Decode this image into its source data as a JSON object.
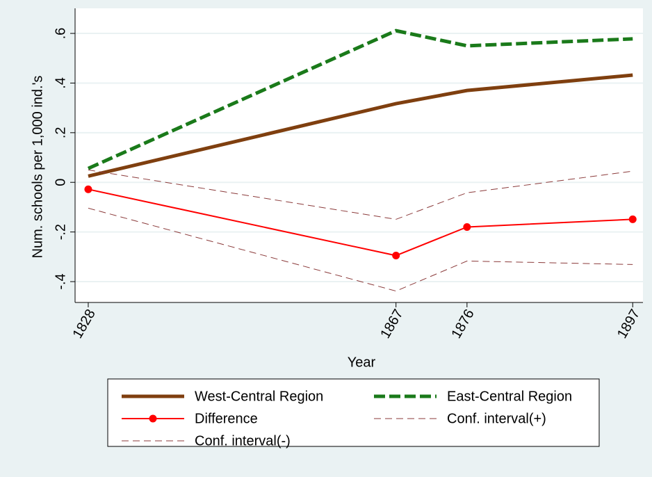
{
  "chart_data": {
    "type": "line",
    "y_label": "Num. schools per 1,000 ind.'s",
    "x_label": "Year",
    "x": [
      1828,
      1867,
      1876,
      1897
    ],
    "series": [
      {
        "name": "West-Central Region",
        "color": "#7f3f0f",
        "width": 5,
        "dash": "solid",
        "values": [
          0.025,
          0.317,
          0.37,
          0.432
        ]
      },
      {
        "name": "East-Central Region",
        "color": "#1a7a1a",
        "width": 5,
        "dash": "dashed",
        "values": [
          0.056,
          0.611,
          0.55,
          0.578
        ]
      },
      {
        "name": "Difference",
        "color": "#ff0000",
        "width": 2,
        "dash": "solid",
        "marker": true,
        "values": [
          -0.028,
          -0.295,
          -0.18,
          -0.149
        ]
      },
      {
        "name": "Conf. interval(+)",
        "color": "#8b3a3a",
        "width": 1,
        "dash": "dashed",
        "values": [
          0.05,
          -0.149,
          -0.042,
          0.045
        ]
      },
      {
        "name": "Conf. interval(-)",
        "color": "#8b3a3a",
        "width": 1,
        "dash": "dashed",
        "values": [
          -0.104,
          -0.438,
          -0.317,
          -0.331
        ]
      }
    ],
    "xlim": [
      1826.33,
      1898.3
    ],
    "xticks": [
      1828,
      1867,
      1876,
      1897
    ],
    "ylim": [
      -0.484,
      0.701
    ],
    "yticks": [
      {
        "value": -0.4,
        "label": "-.4"
      },
      {
        "value": -0.2,
        "label": "-.2"
      },
      0,
      {
        "value": 0.2,
        "label": ".2"
      },
      {
        "value": 0.4,
        "label": ".4"
      },
      {
        "value": 0.6,
        "label": ".6"
      }
    ],
    "grid": true,
    "legend": "bottom"
  }
}
